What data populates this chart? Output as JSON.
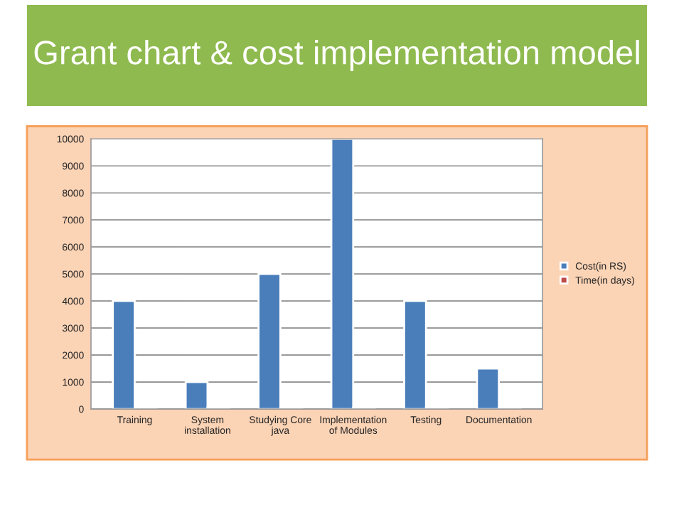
{
  "chart_data": {
    "type": "bar",
    "title": "Grant chart & cost implementation model",
    "categories": [
      "Training",
      "System\ninstallation",
      "Studying Core\njava",
      "Implementation\nof Modules",
      "Testing",
      "Documentation"
    ],
    "series": [
      {
        "name": "Cost(in RS)",
        "color": "#4a7ebb",
        "values": [
          4000,
          1000,
          5000,
          10000,
          4000,
          1500
        ]
      },
      {
        "name": "Time(in days)",
        "color": "#be4b48",
        "values": [
          50,
          50,
          50,
          50,
          50,
          50
        ]
      }
    ],
    "ylim": [
      0,
      10000
    ],
    "yticks": [
      0,
      1000,
      2000,
      3000,
      4000,
      5000,
      6000,
      7000,
      8000,
      9000,
      10000
    ],
    "grid": "y",
    "legend": "right"
  }
}
